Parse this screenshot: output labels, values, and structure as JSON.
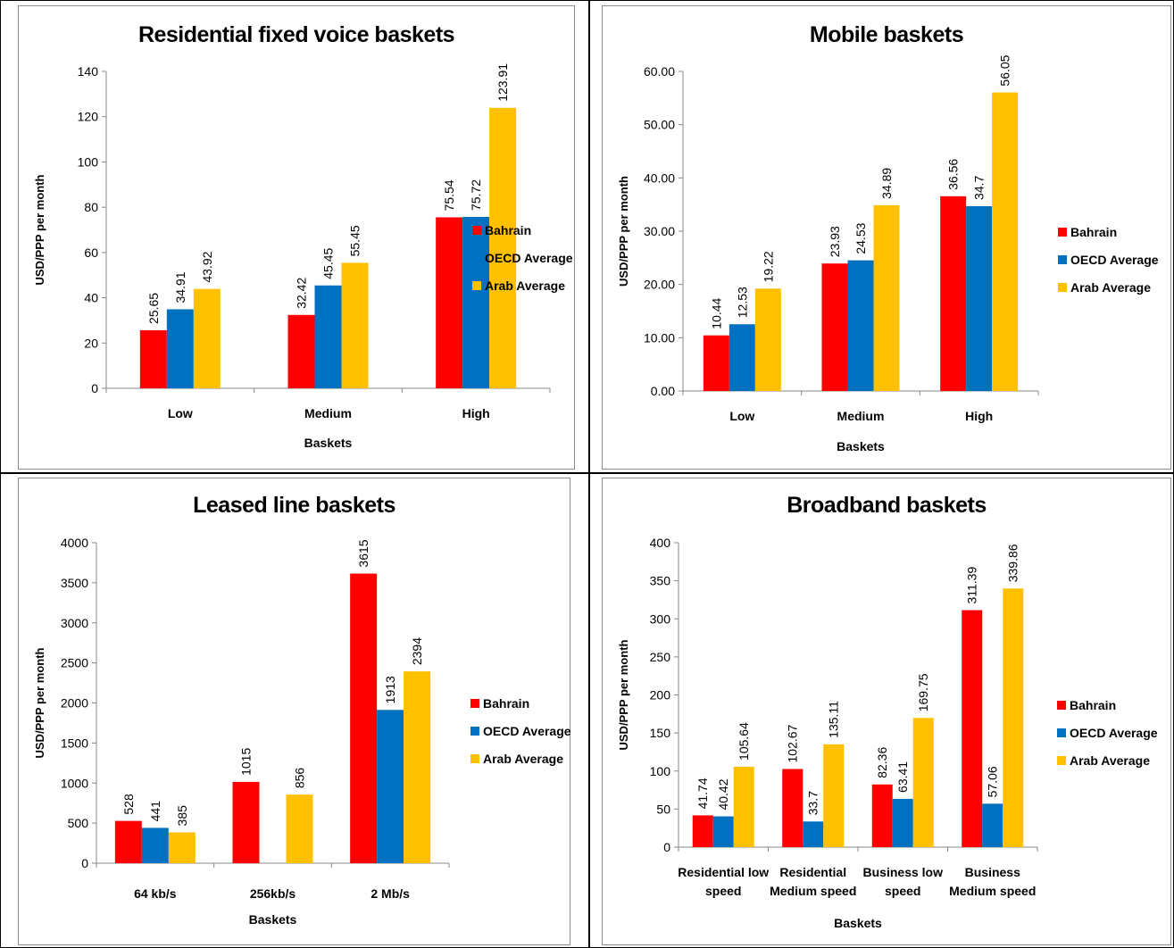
{
  "colors": {
    "Bahrain": "#ff0000",
    "OECD Average": "#0070c0",
    "Arab Average": "#ffc000"
  },
  "chart_data": [
    {
      "type": "bar",
      "title": "Residential fixed voice baskets",
      "xlabel": "Baskets",
      "ylabel": "USD/PPP per month",
      "ylim": [
        0,
        140
      ],
      "yticks": [
        "0",
        "20",
        "40",
        "60",
        "80",
        "100",
        "120",
        "140"
      ],
      "ytick_values": [
        0,
        20,
        40,
        60,
        80,
        100,
        120,
        140
      ],
      "categories": [
        [
          "Low"
        ],
        [
          "Medium"
        ],
        [
          "High"
        ]
      ],
      "series": [
        {
          "name": "Bahrain",
          "values": [
            25.65,
            32.42,
            75.54
          ],
          "labels": [
            "25.65",
            "32.42",
            "75.54"
          ]
        },
        {
          "name": "OECD Average",
          "values": [
            34.91,
            45.45,
            75.72
          ],
          "labels": [
            "34.91",
            "45.45",
            "75.72"
          ]
        },
        {
          "name": "Arab Average",
          "values": [
            43.92,
            55.45,
            123.91
          ],
          "labels": [
            "43.92",
            "55.45",
            "123.91"
          ]
        }
      ],
      "legend_position": "right",
      "grid": false
    },
    {
      "type": "bar",
      "title": "Mobile baskets",
      "xlabel": "Baskets",
      "ylabel": "USD/PPP per month",
      "ylim": [
        0,
        60
      ],
      "yticks": [
        "0.00",
        "10.00",
        "20.00",
        "30.00",
        "40.00",
        "50.00",
        "60.00"
      ],
      "ytick_values": [
        0,
        10,
        20,
        30,
        40,
        50,
        60
      ],
      "categories": [
        [
          "Low"
        ],
        [
          "Medium"
        ],
        [
          "High"
        ]
      ],
      "series": [
        {
          "name": "Bahrain",
          "values": [
            10.44,
            23.93,
            36.56
          ],
          "labels": [
            "10.44",
            "23.93",
            "36.56"
          ]
        },
        {
          "name": "OECD Average",
          "values": [
            12.53,
            24.53,
            34.7
          ],
          "labels": [
            "12.53",
            "24.53",
            "34.7"
          ]
        },
        {
          "name": "Arab Average",
          "values": [
            19.22,
            34.89,
            56.05
          ],
          "labels": [
            "19.22",
            "34.89",
            "56.05"
          ]
        }
      ],
      "legend_position": "right",
      "grid": false
    },
    {
      "type": "bar",
      "title": "Leased line baskets",
      "xlabel": "Baskets",
      "ylabel": "USD/PPP per month",
      "ylim": [
        0,
        4000
      ],
      "yticks": [
        "0",
        "500",
        "1000",
        "1500",
        "2000",
        "2500",
        "3000",
        "3500",
        "4000"
      ],
      "ytick_values": [
        0,
        500,
        1000,
        1500,
        2000,
        2500,
        3000,
        3500,
        4000
      ],
      "categories": [
        [
          "64 kb/s"
        ],
        [
          "256kb/s"
        ],
        [
          "2 Mb/s"
        ]
      ],
      "series": [
        {
          "name": "Bahrain",
          "values": [
            528,
            1015,
            3615
          ],
          "labels": [
            "528",
            "1015",
            "3615"
          ]
        },
        {
          "name": "OECD Average",
          "values": [
            441,
            null,
            1913
          ],
          "labels": [
            "441",
            "",
            "1913"
          ]
        },
        {
          "name": "Arab Average",
          "values": [
            385,
            856,
            2394
          ],
          "labels": [
            "385",
            "856",
            "2394"
          ]
        }
      ],
      "legend_position": "right",
      "grid": false
    },
    {
      "type": "bar",
      "title": "Broadband baskets",
      "xlabel": "Baskets",
      "ylabel": "USD/PPP per month",
      "ylim": [
        0,
        400
      ],
      "yticks": [
        "0",
        "50",
        "100",
        "150",
        "200",
        "250",
        "300",
        "350",
        "400"
      ],
      "ytick_values": [
        0,
        50,
        100,
        150,
        200,
        250,
        300,
        350,
        400
      ],
      "categories": [
        [
          "Residential low",
          "speed"
        ],
        [
          "Residential",
          "Medium speed"
        ],
        [
          "Business low",
          "speed"
        ],
        [
          "Business",
          "Medium speed"
        ]
      ],
      "series": [
        {
          "name": "Bahrain",
          "values": [
            41.74,
            102.67,
            82.36,
            311.39
          ],
          "labels": [
            "41.74",
            "102.67",
            "82.36",
            "311.39"
          ]
        },
        {
          "name": "OECD Average",
          "values": [
            40.42,
            33.7,
            63.41,
            57.06
          ],
          "labels": [
            "40.42",
            "33.7",
            "63.41",
            "57.06"
          ]
        },
        {
          "name": "Arab Average",
          "values": [
            105.64,
            135.11,
            169.75,
            339.86
          ],
          "labels": [
            "105.64",
            "135.11",
            "169.75",
            "339.86"
          ]
        }
      ],
      "legend_position": "right",
      "grid": false
    }
  ]
}
